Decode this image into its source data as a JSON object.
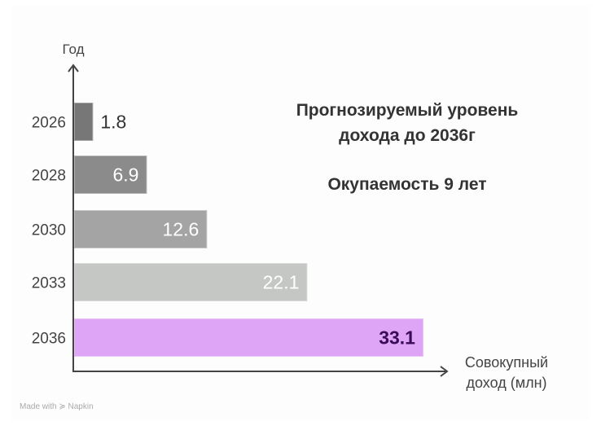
{
  "chart_data": {
    "type": "bar",
    "orientation": "horizontal",
    "categories": [
      "2026",
      "2028",
      "2030",
      "2033",
      "2036"
    ],
    "values": [
      1.8,
      6.9,
      12.6,
      22.1,
      33.1
    ],
    "labels": [
      "1.8",
      "6.9",
      "12.6",
      "22.1",
      "33.1"
    ],
    "colors": [
      "#777777",
      "#8b8b8b",
      "#a4a4a4",
      "#c5c7c5",
      "#dea4f6"
    ],
    "label_colors": [
      "#333333",
      "#ffffff",
      "#ffffff",
      "#ffffff",
      "#3a0a58"
    ],
    "title": "Прогнозируемый уровень дохода до 2036г",
    "subtitle": "Окупаемость 9 лет",
    "xlabel": [
      "Совокупный",
      "доход (млн)"
    ],
    "ylabel": "Год",
    "xlim": [
      0,
      35
    ],
    "grid": false,
    "legend": "none"
  },
  "title_lines": [
    "Прогнозируемый уровень",
    "дохода до 2036г"
  ],
  "watermark": "Made with ≽ Napkin"
}
